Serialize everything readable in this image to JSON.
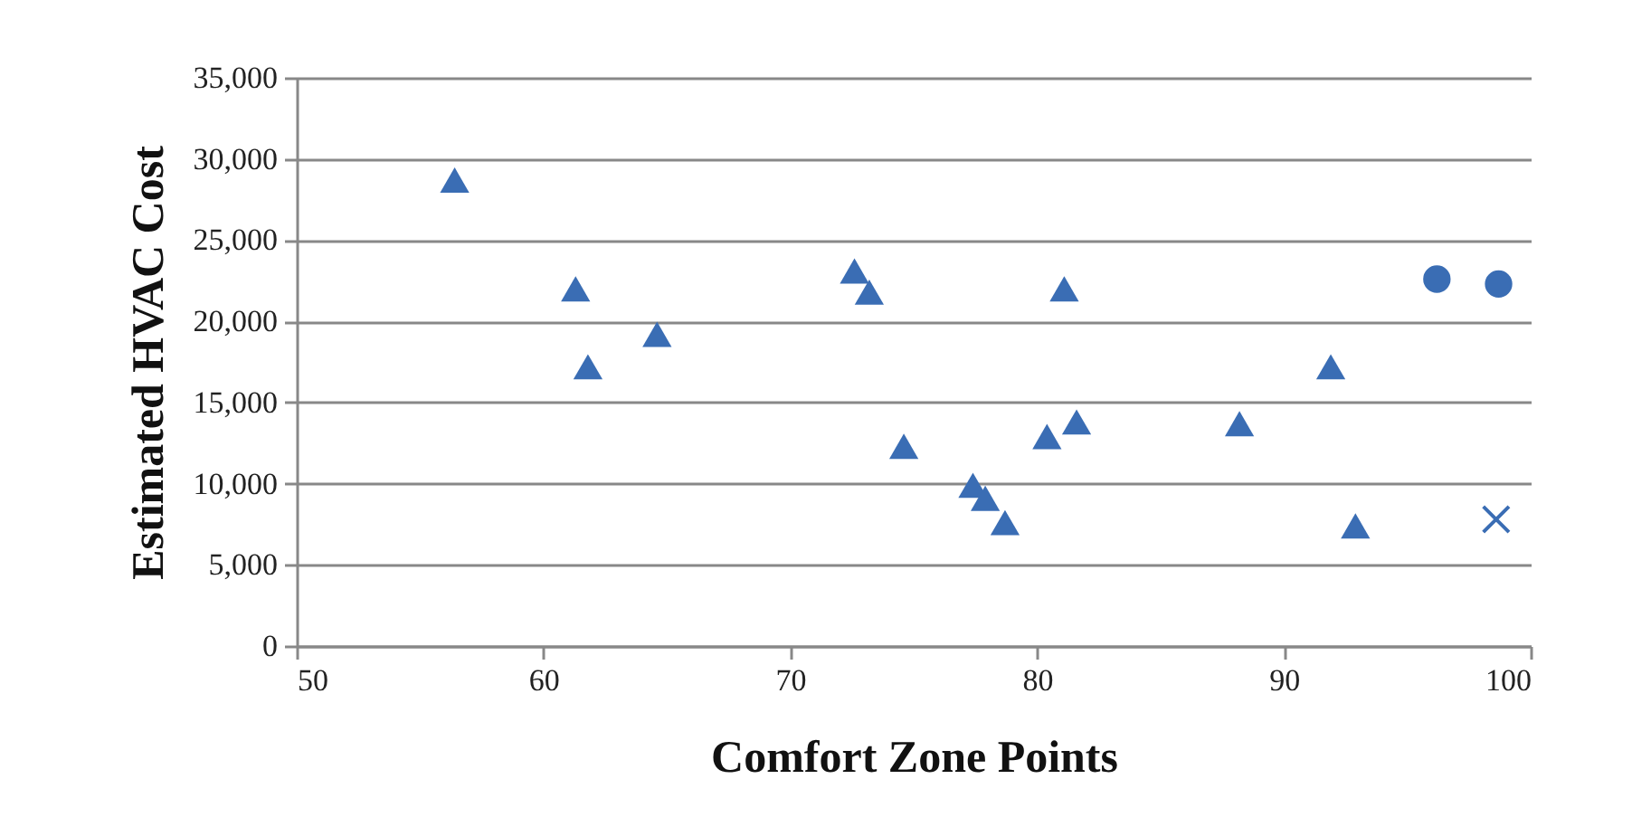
{
  "chart_data": {
    "type": "scatter",
    "xlabel": "Comfort Zone Points",
    "ylabel": "Estimated HVAC Cost",
    "xlim": [
      50,
      100
    ],
    "xticks": [
      50,
      60,
      70,
      80,
      90,
      100
    ],
    "ylim": [
      0,
      35000
    ],
    "yticks": [
      {
        "value": 0,
        "label": "0"
      },
      {
        "value": 5000,
        "label": "5,000"
      },
      {
        "value": 10000,
        "label": "10,000"
      },
      {
        "value": 15000,
        "label": "15,000"
      },
      {
        "value": 20000,
        "label": "20,000"
      },
      {
        "value": 25000,
        "label": "25,000"
      },
      {
        "value": 30000,
        "label": "30,000"
      },
      {
        "value": 35000,
        "label": "35,000"
      }
    ],
    "grid": "y",
    "series": [
      {
        "color": "#3a6db4",
        "marker": "triangle",
        "x": [
          56.4,
          61.3,
          61.8,
          64.6,
          72.6,
          73.2,
          74.6,
          77.4,
          77.9,
          78.7,
          80.4,
          81.6,
          81.1,
          88.2,
          91.9,
          92.9
        ],
        "values": [
          28700,
          22000,
          17200,
          19200,
          23100,
          21800,
          12300,
          9900,
          9100,
          7600,
          12900,
          13800,
          22000,
          13700,
          17200,
          7400
        ]
      },
      {
        "color": "#3a6db4",
        "marker": "circle",
        "x": [
          96.2,
          98.7
        ],
        "values": [
          22600,
          22300
        ]
      },
      {
        "color": "#3a6db4",
        "marker": "cross",
        "x": [
          98.6
        ],
        "values": [
          7800
        ]
      }
    ]
  }
}
